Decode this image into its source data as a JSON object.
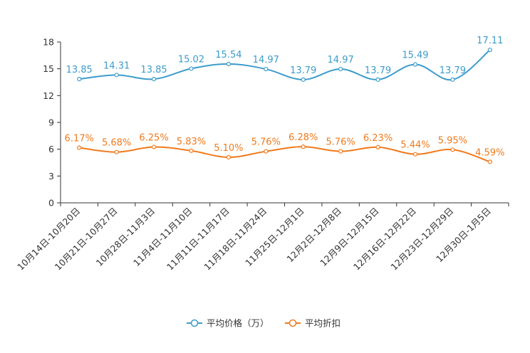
{
  "chart_data": {
    "type": "line",
    "categories": [
      "10月14日-10月20日",
      "10月21日-10月27日",
      "10月28日-11月3日",
      "11月4日-11月10日",
      "11月11日-11月17日",
      "11月18日-11月24日",
      "11月25日-12月1日",
      "12月2日-12月8日",
      "12月9日-12月15日",
      "12月16日-12月22日",
      "12月23日-12月29日",
      "12月30日-1月5日"
    ],
    "series": [
      {
        "name": "平均价格（万）",
        "color": "#3d9ccb",
        "values": [
          13.85,
          14.31,
          13.85,
          15.02,
          15.54,
          14.97,
          13.79,
          14.97,
          13.79,
          15.49,
          13.79,
          17.11
        ],
        "labels": [
          "13.85",
          "14.31",
          "13.85",
          "15.02",
          "15.54",
          "14.97",
          "13.79",
          "14.97",
          "13.79",
          "15.49",
          "13.79",
          "17.11"
        ]
      },
      {
        "name": "平均折扣",
        "color": "#f07a1c",
        "values": [
          6.17,
          5.68,
          6.25,
          5.83,
          5.1,
          5.76,
          6.28,
          5.76,
          6.23,
          5.44,
          5.95,
          4.59
        ],
        "labels": [
          "6.17%",
          "5.68%",
          "6.25%",
          "5.83%",
          "5.10%",
          "5.76%",
          "6.28%",
          "5.76%",
          "6.23%",
          "5.44%",
          "5.95%",
          "4.59%"
        ]
      }
    ],
    "ylim": [
      0,
      18
    ],
    "yticks": [
      "0",
      "3",
      "6",
      "9",
      "12",
      "15",
      "18"
    ],
    "title": "",
    "xlabel": "",
    "ylabel": "",
    "grid": false,
    "legend_position": "bottom-center"
  }
}
